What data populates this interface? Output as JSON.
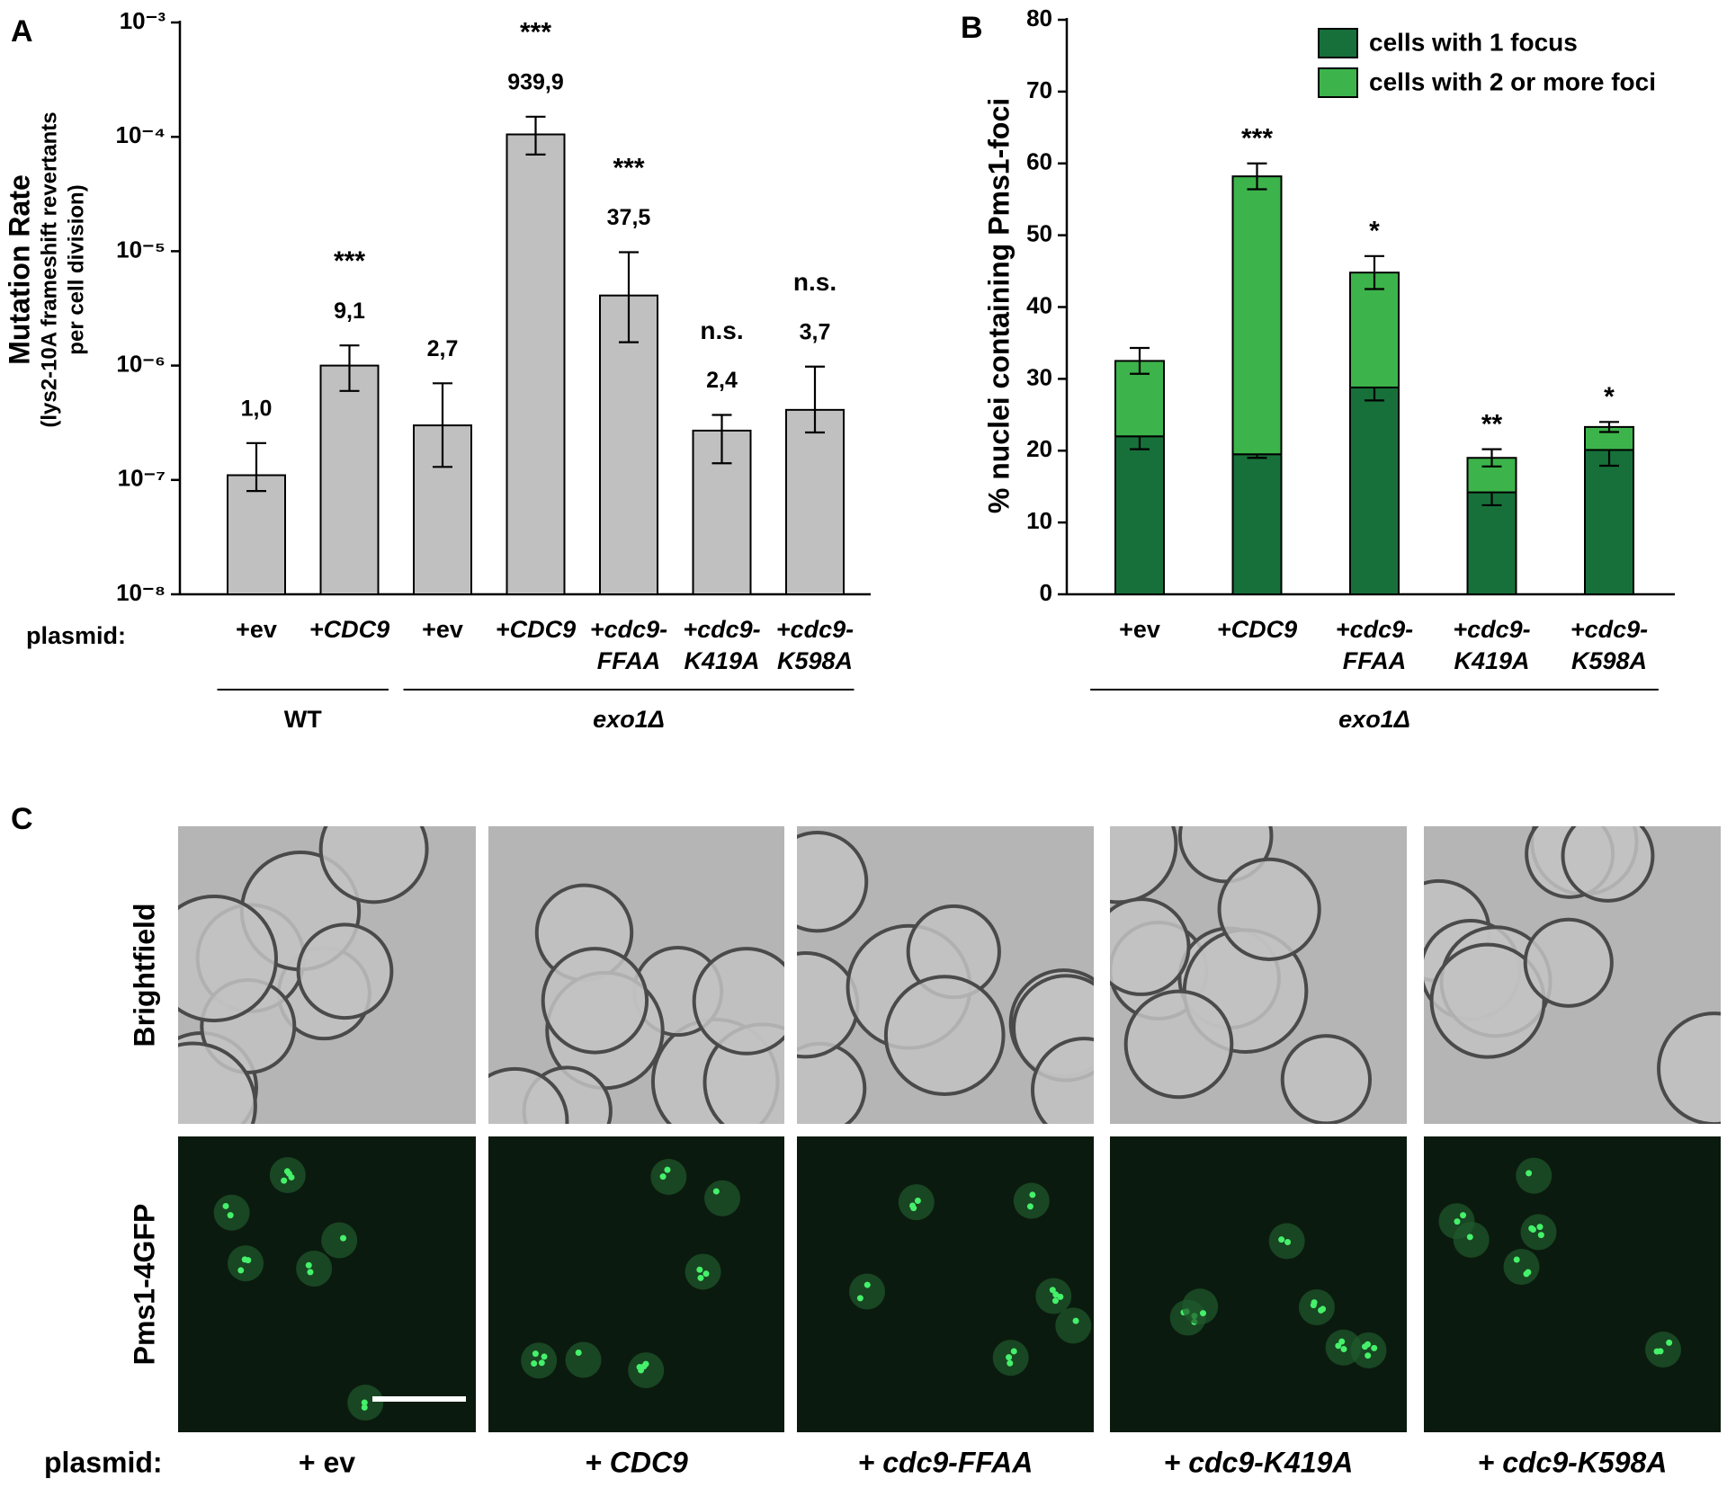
{
  "chart_data": [
    {
      "type": "bar",
      "panel": "A",
      "log": true,
      "ylabel": "Mutation Rate",
      "ylabel_sub": [
        "(lys2-10A frameshift revertants",
        "per cell division)"
      ],
      "xlabel": "plasmid:",
      "categories": [
        [
          "+ev"
        ],
        [
          "+CDC9"
        ],
        [
          "+ev"
        ],
        [
          "+CDC9"
        ],
        [
          "+cdc9-",
          "FFAA"
        ],
        [
          "+cdc9-",
          "K419A"
        ],
        [
          "+cdc9-",
          "K598A"
        ]
      ],
      "category_italic": [
        false,
        true,
        false,
        true,
        true,
        true,
        true
      ],
      "values": [
        1.1e-07,
        1e-06,
        3e-07,
        0.000105,
        4.1e-06,
        2.7e-07,
        4.1e-07
      ],
      "error_low": [
        8e-08,
        6e-07,
        1.3e-07,
        7e-05,
        1.6e-06,
        1.4e-07,
        2.6e-07
      ],
      "error_high": [
        2.1e-07,
        1.5e-06,
        7e-07,
        0.00015,
        9.8e-06,
        3.7e-07,
        9.8e-07
      ],
      "fold_labels": [
        "1,0",
        "9,1",
        "2,7",
        "939,9",
        "37,5",
        "2,4",
        "3,7"
      ],
      "significance": [
        null,
        "***",
        null,
        "***",
        "***",
        "n.s.",
        "n.s."
      ],
      "color": "#c0c0c0",
      "ylim": [
        1e-08,
        0.001
      ],
      "yticks": [
        {
          "value": 1e-08,
          "label": "10⁻⁸"
        },
        {
          "value": 1e-07,
          "label": "10⁻⁷"
        },
        {
          "value": 1e-06,
          "label": "10⁻⁶"
        },
        {
          "value": 1e-05,
          "label": "10⁻⁵"
        },
        {
          "value": 0.0001,
          "label": "10⁻⁴"
        },
        {
          "value": 0.001,
          "label": "10⁻³"
        }
      ],
      "groups": [
        {
          "label": "WT",
          "from": 0,
          "to": 1
        },
        {
          "label": "exo1Δ",
          "from": 2,
          "to": 6
        }
      ]
    },
    {
      "type": "stacked_bar",
      "panel": "B",
      "ylabel": "% nuclei containing Pms1-foci",
      "categories": [
        [
          "+ev"
        ],
        [
          "+CDC9"
        ],
        [
          "+cdc9-",
          "FFAA"
        ],
        [
          "+cdc9-",
          "K419A"
        ],
        [
          "+cdc9-",
          "K598A"
        ]
      ],
      "category_italic": [
        false,
        true,
        true,
        true,
        true
      ],
      "series": [
        {
          "name": "cells with 1 focus",
          "color": "#17703a",
          "values": [
            22,
            19.5,
            28.8,
            14.2,
            20.1
          ],
          "errors": [
            1.8,
            0.5,
            1.8,
            1.8,
            2.2
          ]
        },
        {
          "name": "cells with 2 or more foci",
          "color": "#3cb44b",
          "values": [
            10.5,
            38.7,
            16,
            4.8,
            3.2
          ],
          "errors": [
            1.8,
            1.8,
            2.3,
            1.2,
            0.7
          ]
        }
      ],
      "significance": [
        null,
        "***",
        "*",
        "**",
        "*"
      ],
      "ylim": [
        0,
        80
      ],
      "yticks": [
        0,
        10,
        20,
        30,
        40,
        50,
        60,
        70,
        80
      ],
      "legend": "top-right",
      "groups": [
        {
          "label": "exo1Δ",
          "from": 0,
          "to": 4
        }
      ]
    }
  ],
  "panel_c": {
    "panel": "C",
    "row_labels": [
      "Brightfield",
      "Pms1-4GFP"
    ],
    "plasmid_label": "plasmid:",
    "columns": [
      "+ ev",
      "+ CDC9",
      "+ cdc9-FFAA",
      "+ cdc9-K419A",
      "+ cdc9-K598A"
    ],
    "column_italic": [
      false,
      true,
      true,
      true,
      true
    ]
  }
}
